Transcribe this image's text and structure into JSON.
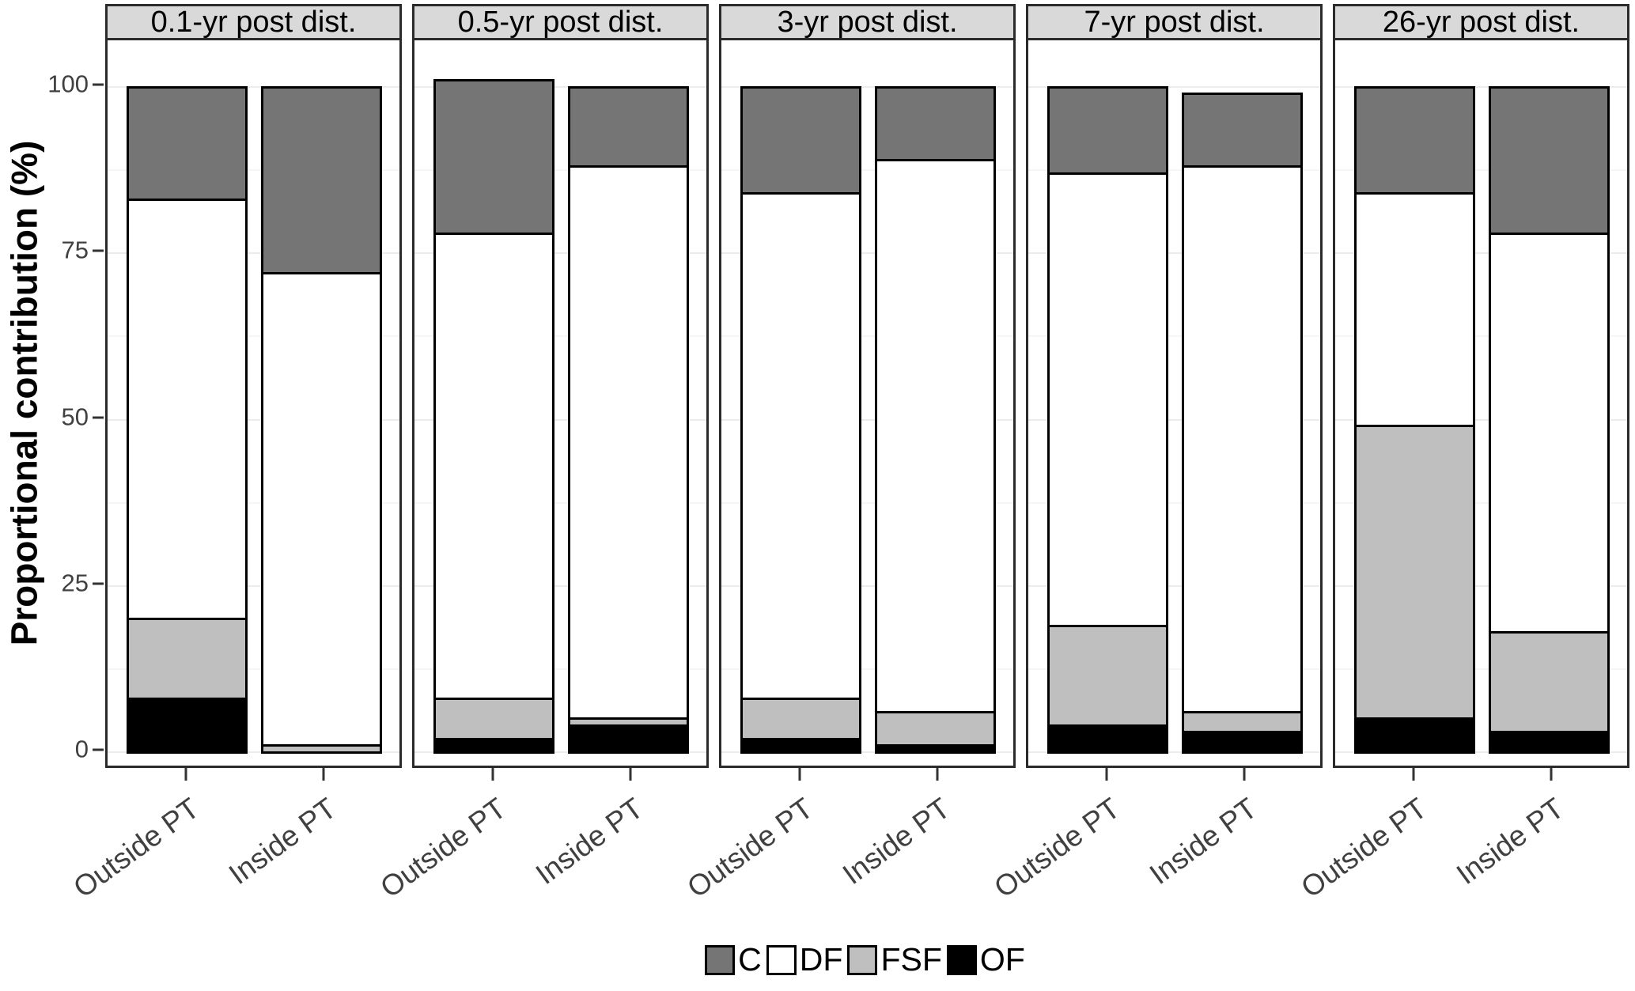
{
  "chart_data": {
    "type": "bar",
    "stacked": true,
    "ylabel": "Proportional contribution (%)",
    "ylim": [
      0,
      100
    ],
    "yticks": [
      100,
      75,
      50,
      25,
      0
    ],
    "minor_gridlines": [
      12.5,
      37.5,
      62.5,
      87.5
    ],
    "categories": [
      "Outside PT",
      "Inside PT"
    ],
    "stack_order_bottom_to_top": [
      "OF",
      "FSF",
      "DF",
      "C"
    ],
    "series_colors": {
      "C": "#757575",
      "DF": "#ffffff",
      "FSF": "#bfbfbf",
      "OF": "#000000"
    },
    "legend": [
      {
        "label": "C",
        "color": "#757575"
      },
      {
        "label": "DF",
        "color": "#ffffff"
      },
      {
        "label": "FSF",
        "color": "#bfbfbf"
      },
      {
        "label": "OF",
        "color": "#000000"
      }
    ],
    "legend_position": "bottom-center",
    "grid": "on",
    "facets": [
      {
        "label": "0.1-yr post dist.",
        "bars": [
          {
            "category": "Outside PT",
            "values": {
              "OF": 8,
              "FSF": 12,
              "DF": 63,
              "C": 17
            },
            "total": 100
          },
          {
            "category": "Inside PT",
            "values": {
              "OF": 0,
              "FSF": 1,
              "DF": 71,
              "C": 28
            },
            "total": 100
          }
        ]
      },
      {
        "label": "0.5-yr post dist.",
        "bars": [
          {
            "category": "Outside PT",
            "values": {
              "OF": 2,
              "FSF": 6,
              "DF": 70,
              "C": 23
            },
            "total": 101
          },
          {
            "category": "Inside PT",
            "values": {
              "OF": 4,
              "FSF": 1,
              "DF": 83,
              "C": 12
            },
            "total": 100
          }
        ]
      },
      {
        "label": "3-yr post dist.",
        "bars": [
          {
            "category": "Outside PT",
            "values": {
              "OF": 2,
              "FSF": 6,
              "DF": 76,
              "C": 16
            },
            "total": 100
          },
          {
            "category": "Inside PT",
            "values": {
              "OF": 1,
              "FSF": 5,
              "DF": 83,
              "C": 11
            },
            "total": 100
          }
        ]
      },
      {
        "label": "7-yr post dist.",
        "bars": [
          {
            "category": "Outside PT",
            "values": {
              "OF": 4,
              "FSF": 15,
              "DF": 68,
              "C": 13
            },
            "total": 100
          },
          {
            "category": "Inside PT",
            "values": {
              "OF": 3,
              "FSF": 3,
              "DF": 82,
              "C": 11
            },
            "total": 99
          }
        ]
      },
      {
        "label": "26-yr post dist.",
        "bars": [
          {
            "category": "Outside PT",
            "values": {
              "OF": 5,
              "FSF": 44,
              "DF": 35,
              "C": 16
            },
            "total": 100
          },
          {
            "category": "Inside PT",
            "values": {
              "OF": 3,
              "FSF": 15,
              "DF": 60,
              "C": 22
            },
            "total": 100
          }
        ]
      }
    ],
    "style": {
      "strip_background": "#d9d9d9",
      "panel_border": "#2b2b2b",
      "segment_stroke": "#000000",
      "major_gridline": "#ececec",
      "minor_gridline": "#f6f6f6",
      "axis_text": "#404040",
      "tick_mark": "#333333"
    }
  }
}
